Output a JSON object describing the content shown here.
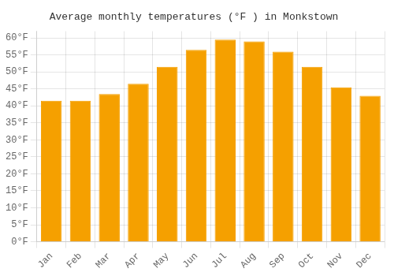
{
  "chart_data": {
    "type": "bar",
    "title": "Average monthly temperatures (°F ) in Monkstown",
    "categories": [
      "Jan",
      "Feb",
      "Mar",
      "Apr",
      "May",
      "Jun",
      "Jul",
      "Aug",
      "Sep",
      "Oct",
      "Nov",
      "Dec"
    ],
    "values": [
      41.5,
      41.5,
      43.5,
      46.5,
      51.5,
      56.5,
      59.5,
      59.0,
      56.0,
      51.5,
      45.5,
      43.0
    ],
    "color": "#F5A000",
    "ylim": [
      0,
      62
    ],
    "yticks": [
      {
        "value": 0,
        "label": "0°F"
      },
      {
        "value": 5,
        "label": "5°F"
      },
      {
        "value": 10,
        "label": "10°F"
      },
      {
        "value": 15,
        "label": "15°F"
      },
      {
        "value": 20,
        "label": "20°F"
      },
      {
        "value": 25,
        "label": "25°F"
      },
      {
        "value": 30,
        "label": "30°F"
      },
      {
        "value": 35,
        "label": "35°F"
      },
      {
        "value": 40,
        "label": "40°F"
      },
      {
        "value": 45,
        "label": "45°F"
      },
      {
        "value": 50,
        "label": "50°F"
      },
      {
        "value": 55,
        "label": "55°F"
      },
      {
        "value": 60,
        "label": "60°F"
      }
    ],
    "grid": true
  }
}
